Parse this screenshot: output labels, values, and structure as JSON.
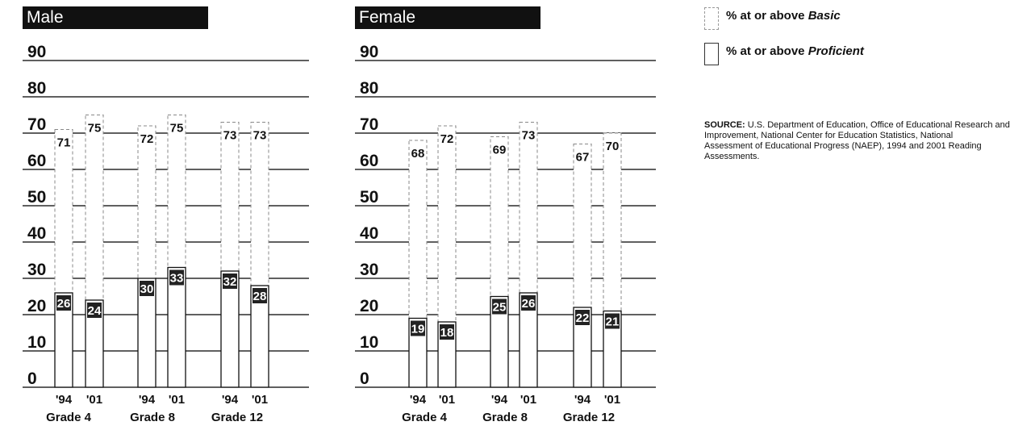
{
  "chart_data": [
    {
      "type": "bar",
      "title": "Male",
      "groups": [
        "Grade 4",
        "Grade 8",
        "Grade 12"
      ],
      "categories": [
        "'94",
        "'01",
        "'94",
        "'01",
        "'94",
        "'01"
      ],
      "ylim": [
        0,
        90
      ],
      "yticks": [
        "0",
        "10",
        "20",
        "30",
        "40",
        "50",
        "60",
        "70",
        "80",
        "90"
      ],
      "series": [
        {
          "name": "% at or above Basic",
          "values": [
            71,
            75,
            72,
            75,
            73,
            73
          ]
        },
        {
          "name": "% at or above Proficient",
          "values": [
            26,
            24,
            30,
            33,
            32,
            28
          ]
        }
      ]
    },
    {
      "type": "bar",
      "title": "Female",
      "groups": [
        "Grade 4",
        "Grade 8",
        "Grade 12"
      ],
      "categories": [
        "'94",
        "'01",
        "'94",
        "'01",
        "'94",
        "'01"
      ],
      "ylim": [
        0,
        90
      ],
      "yticks": [
        "0",
        "10",
        "20",
        "30",
        "40",
        "50",
        "60",
        "70",
        "80",
        "90"
      ],
      "series": [
        {
          "name": "% at or above Basic",
          "values": [
            68,
            72,
            69,
            73,
            67,
            70
          ]
        },
        {
          "name": "% at or above Proficient",
          "values": [
            19,
            18,
            25,
            26,
            22,
            21
          ]
        }
      ]
    }
  ],
  "legend": {
    "basic_prefix": "% at or above ",
    "basic_emph": "Basic",
    "proficient_prefix": "% at or above ",
    "proficient_emph": "Proficient"
  },
  "source": {
    "label": "SOURCE:",
    "line1": " U.S. Department of Education, Office of Educational Research and",
    "line2": "Improvement, National Center for Education Statistics, National",
    "line3": "Assessment of Educational Progress (NAEP), 1994 and 2001 Reading",
    "line4": "Assessments."
  }
}
